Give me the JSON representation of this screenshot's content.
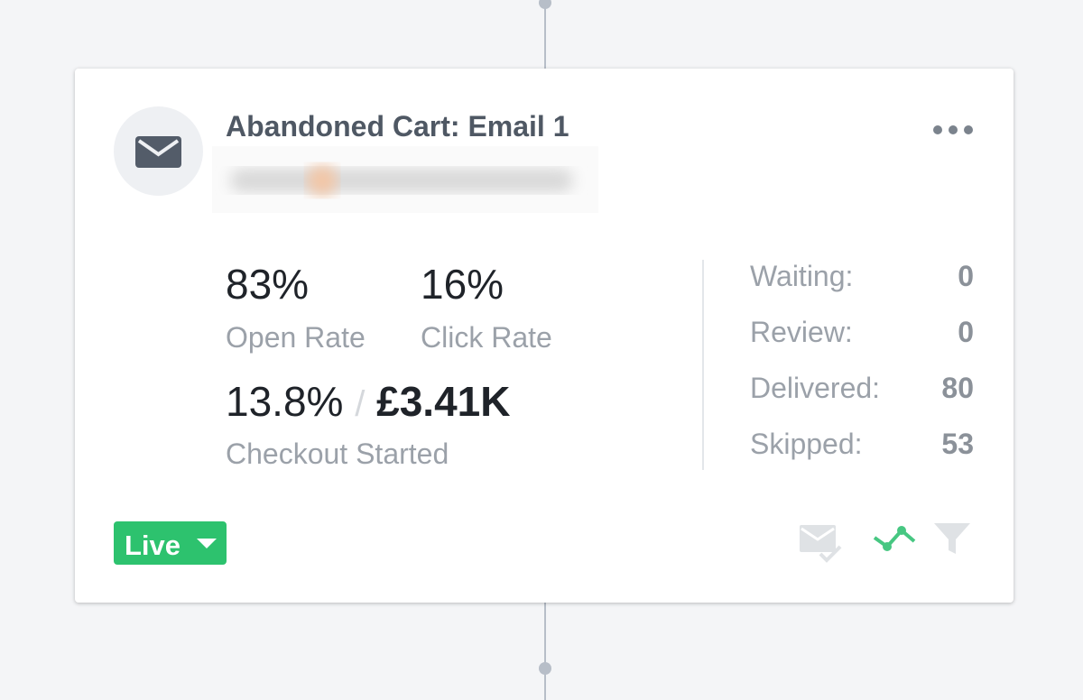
{
  "card": {
    "title": "Abandoned Cart: Email 1",
    "stats": [
      {
        "value": "83%",
        "label": "Open Rate"
      },
      {
        "value": "16%",
        "label": "Click Rate"
      }
    ],
    "conversion": {
      "rate": "13.8%",
      "separator": "/",
      "revenue": "£3.41K",
      "label": "Checkout Started"
    },
    "counts": [
      {
        "label": "Waiting:",
        "value": 0
      },
      {
        "label": "Review:",
        "value": 0
      },
      {
        "label": "Delivered:",
        "value": 80
      },
      {
        "label": "Skipped:",
        "value": 53
      }
    ],
    "status": "Live"
  }
}
